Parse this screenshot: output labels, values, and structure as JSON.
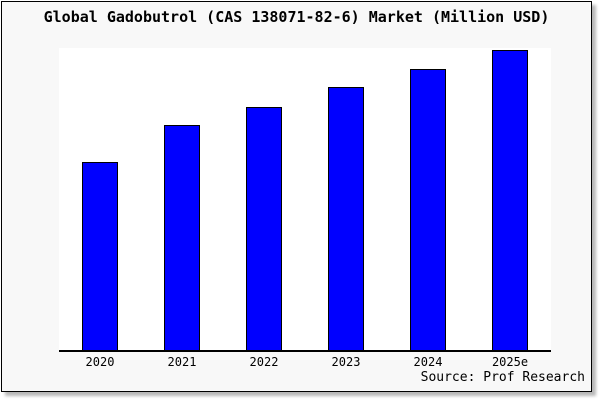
{
  "window": {
    "background_color": "#f8f8f8",
    "plot_background_color": "#ffffff",
    "border_color": "#000000"
  },
  "chart_data": {
    "type": "bar",
    "title": "Global Gadobutrol (CAS 138071-82-6) Market (Million USD)",
    "categories": [
      "2020",
      "2021",
      "2022",
      "2023",
      "2024",
      "2025e"
    ],
    "values": [
      62.3,
      74.5,
      80.5,
      87.1,
      93.0,
      99.3
    ],
    "value_unit": "relative height, percent of plot area (y-axis is unlabeled in the image)",
    "series_name": "Global Gadobutrol Market",
    "xlabel": "",
    "ylabel": "",
    "ylim": [
      0,
      100
    ],
    "grid": false,
    "legend": false,
    "bar_color": "#0000ff",
    "bar_border_color": "#000000",
    "source": "Source: Prof Research"
  }
}
